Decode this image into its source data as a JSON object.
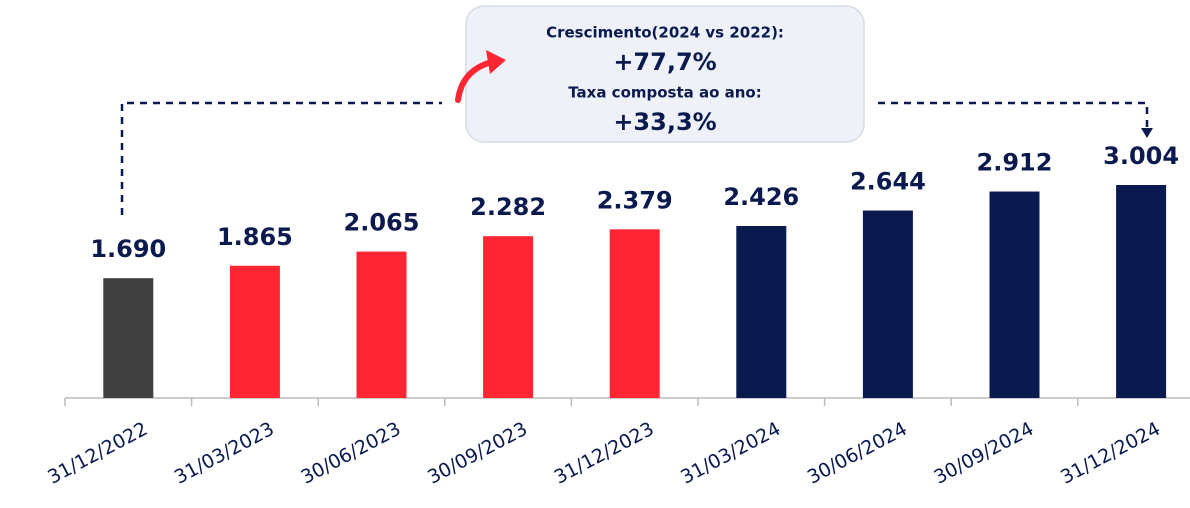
{
  "chart_data": {
    "type": "bar",
    "categories": [
      "31/12/2022",
      "31/03/2023",
      "30/06/2023",
      "30/09/2023",
      "31/12/2023",
      "31/03/2024",
      "30/06/2024",
      "30/09/2024",
      "31/12/2024"
    ],
    "values": [
      1690,
      1865,
      2065,
      2282,
      2379,
      2426,
      2644,
      2912,
      3004
    ],
    "value_labels": [
      "1.690",
      "1.865",
      "2.065",
      "2.282",
      "2.379",
      "2.426",
      "2.644",
      "2.912",
      "3.004"
    ],
    "colors": [
      "#404040",
      "#ff2633",
      "#ff2633",
      "#ff2633",
      "#ff2633",
      "#0a1a4f",
      "#0a1a4f",
      "#0a1a4f",
      "#0a1a4f"
    ],
    "annotations": [
      "Crescimento(2024 vs 2022):",
      "+77,7%",
      "Taxa composta ao ano:",
      "+33,3%"
    ]
  }
}
